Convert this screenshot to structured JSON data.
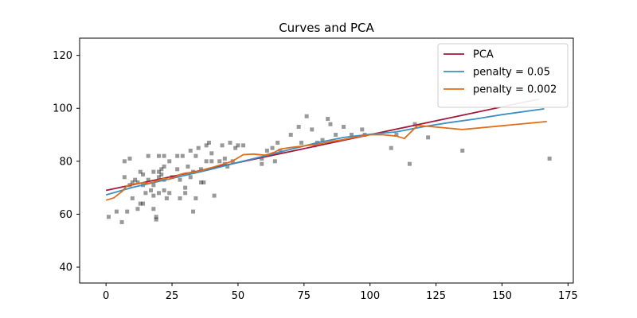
{
  "chart_data": {
    "type": "scatter",
    "title": "Curves and PCA",
    "xlabel": "",
    "ylabel": "",
    "xlim": [
      -10,
      177
    ],
    "ylim": [
      34,
      126.5
    ],
    "xticks": [
      0,
      25,
      50,
      75,
      100,
      125,
      150,
      175
    ],
    "yticks": [
      40,
      60,
      80,
      100,
      120
    ],
    "grid": false,
    "legend_position": "top-right",
    "points": [
      [
        1,
        59
      ],
      [
        4,
        61
      ],
      [
        6,
        57
      ],
      [
        7,
        80
      ],
      [
        7,
        74
      ],
      [
        8,
        61
      ],
      [
        9,
        81
      ],
      [
        9,
        71
      ],
      [
        10,
        72
      ],
      [
        10,
        66
      ],
      [
        11,
        73
      ],
      [
        12,
        72
      ],
      [
        12,
        62
      ],
      [
        13,
        76
      ],
      [
        13,
        64
      ],
      [
        14,
        75
      ],
      [
        14,
        71
      ],
      [
        14,
        64
      ],
      [
        15,
        68
      ],
      [
        16,
        82
      ],
      [
        16,
        73
      ],
      [
        17,
        69
      ],
      [
        18,
        76
      ],
      [
        18,
        71
      ],
      [
        18,
        67
      ],
      [
        18,
        62
      ],
      [
        19,
        59
      ],
      [
        19,
        58
      ],
      [
        20,
        82
      ],
      [
        20,
        76
      ],
      [
        20,
        74
      ],
      [
        20,
        68
      ],
      [
        21,
        77
      ],
      [
        21,
        75
      ],
      [
        22,
        82
      ],
      [
        22,
        78
      ],
      [
        22,
        73
      ],
      [
        22,
        69
      ],
      [
        23,
        66
      ],
      [
        24,
        80
      ],
      [
        24,
        68
      ],
      [
        25,
        74
      ],
      [
        27,
        82
      ],
      [
        27,
        77
      ],
      [
        28,
        73
      ],
      [
        28,
        66
      ],
      [
        29,
        82
      ],
      [
        30,
        70
      ],
      [
        30,
        68
      ],
      [
        31,
        78
      ],
      [
        32,
        84
      ],
      [
        32,
        74
      ],
      [
        33,
        76
      ],
      [
        33,
        61
      ],
      [
        34,
        82
      ],
      [
        34,
        66
      ],
      [
        35,
        85
      ],
      [
        36,
        77
      ],
      [
        36,
        72
      ],
      [
        37,
        72
      ],
      [
        38,
        86
      ],
      [
        38,
        80
      ],
      [
        39,
        87
      ],
      [
        40,
        83
      ],
      [
        40,
        80
      ],
      [
        41,
        67
      ],
      [
        43,
        80
      ],
      [
        44,
        86
      ],
      [
        45,
        81
      ],
      [
        45,
        79
      ],
      [
        46,
        78
      ],
      [
        47,
        87
      ],
      [
        48,
        80
      ],
      [
        49,
        85
      ],
      [
        50,
        86
      ],
      [
        52,
        86
      ],
      [
        59,
        79
      ],
      [
        59,
        81
      ],
      [
        61,
        84
      ],
      [
        63,
        85
      ],
      [
        64,
        80
      ],
      [
        65,
        87
      ],
      [
        66,
        84
      ],
      [
        70,
        90
      ],
      [
        73,
        93
      ],
      [
        74,
        87
      ],
      [
        76,
        97
      ],
      [
        78,
        92
      ],
      [
        79,
        86
      ],
      [
        80,
        87
      ],
      [
        82,
        88
      ],
      [
        84,
        96
      ],
      [
        85,
        94
      ],
      [
        87,
        90
      ],
      [
        90,
        93
      ],
      [
        93,
        90
      ],
      [
        97,
        92
      ],
      [
        98,
        90
      ],
      [
        108,
        85
      ],
      [
        110,
        90
      ],
      [
        115,
        79
      ],
      [
        117,
        94
      ],
      [
        122,
        89
      ],
      [
        135,
        84
      ],
      [
        168,
        81
      ]
    ],
    "series": [
      {
        "name": "PCA",
        "color": "#a2183a",
        "x": [
          0,
          164
        ],
        "y": [
          69,
          103.5
        ]
      },
      {
        "name": "penalty = 0.05",
        "color": "#3b8fc1",
        "x": [
          0,
          10,
          20,
          30,
          40,
          50,
          60,
          70,
          80,
          90,
          100,
          110,
          120,
          130,
          140,
          150,
          166
        ],
        "y": [
          67.3,
          70.1,
          72.4,
          74.7,
          77.0,
          79.6,
          82.0,
          84.5,
          87.0,
          89.0,
          90.2,
          91.1,
          93.0,
          94.6,
          96.0,
          97.6,
          99.8
        ]
      },
      {
        "name": "penalty = 0.002",
        "color": "#e06d1a",
        "x": [
          0,
          3,
          6,
          8,
          10,
          12,
          14,
          16,
          18,
          20,
          22,
          24,
          26,
          28,
          30,
          33,
          36,
          38,
          40,
          42,
          44,
          46,
          48,
          50,
          52,
          56,
          60,
          62,
          64,
          66,
          70,
          75,
          80,
          85,
          90,
          95,
          100,
          105,
          110,
          113,
          118,
          124,
          135,
          167
        ],
        "y": [
          65.3,
          66.2,
          68.5,
          70.8,
          71.3,
          71.6,
          71.9,
          71.7,
          72.1,
          72.9,
          73.5,
          73.2,
          74.0,
          75.0,
          75.5,
          75.8,
          76.4,
          77.1,
          77.6,
          78.2,
          78.8,
          79.4,
          80.1,
          81.3,
          82.5,
          82.7,
          82.3,
          82.8,
          83.5,
          84.6,
          85.2,
          85.8,
          86.4,
          87.4,
          88.2,
          89.2,
          90.0,
          90.0,
          89.5,
          88.6,
          93.5,
          93.0,
          92.0,
          95.0
        ]
      }
    ]
  }
}
